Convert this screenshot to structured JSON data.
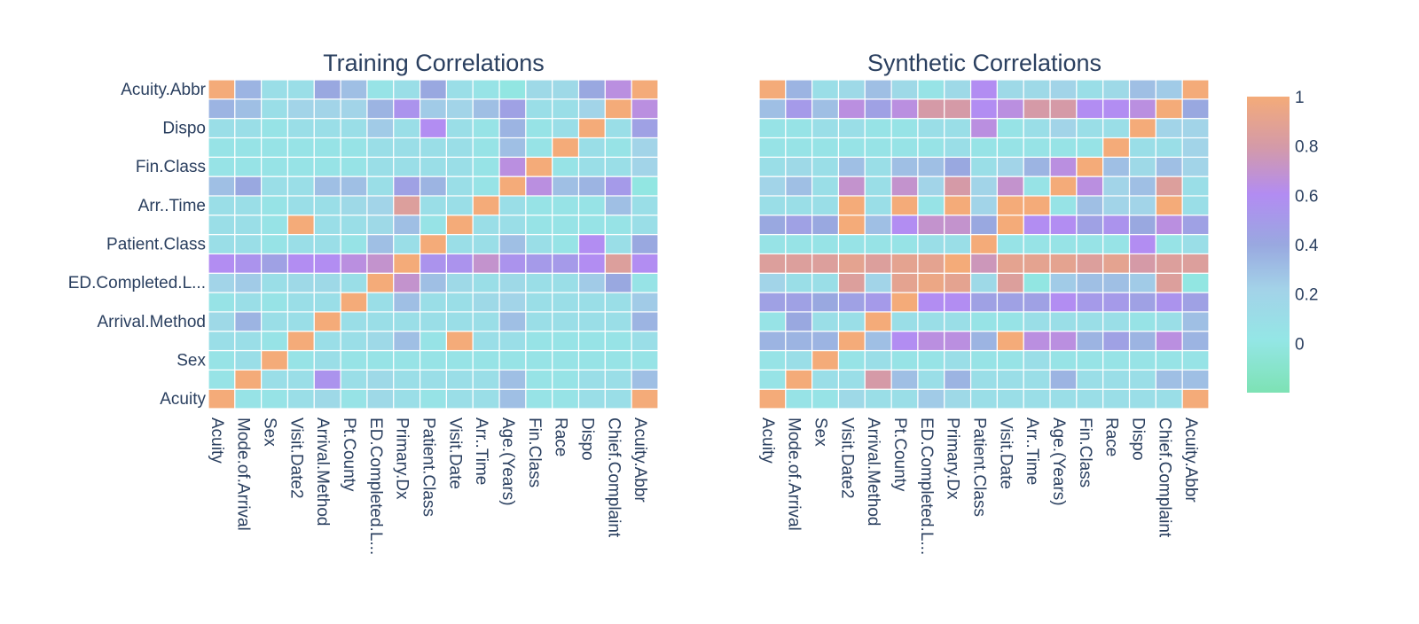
{
  "chart_data": {
    "type": "heatmap",
    "variables": [
      "Acuity",
      "Mode.of.Arrival",
      "Sex",
      "Visit.Date2",
      "Arrival.Method",
      "Pt.County",
      "ED.Completed.L...",
      "Primary.Dx",
      "Patient.Class",
      "Visit.Date",
      "Arr..Time",
      "Age.(Years)",
      "Fin.Class",
      "Race",
      "Dispo",
      "Chief.Complaint",
      "Acuity.Abbr"
    ],
    "y_tick_labels_shown": [
      "Acuity",
      "Sex",
      "Arrival.Method",
      "ED.Completed.L...",
      "Patient.Class",
      "Arr..Time",
      "Fin.Class",
      "Dispo",
      "Acuity.Abbr"
    ],
    "colorbar": {
      "ticks": [
        0,
        0.2,
        0.4,
        0.6,
        0.8,
        1
      ],
      "range": [
        -0.2,
        1
      ],
      "colorscale": [
        [
          0,
          "#7de2b4"
        ],
        [
          0.18,
          "#94e6e6"
        ],
        [
          0.35,
          "#a3d2e8"
        ],
        [
          0.5,
          "#99a8e0"
        ],
        [
          0.67,
          "#b28cf2"
        ],
        [
          0.83,
          "#d49aa8"
        ],
        [
          1,
          "#f4ab79"
        ]
      ]
    },
    "panels": [
      {
        "title": "Training Correlations",
        "z": [
          [
            1.0,
            0.05,
            0.05,
            0.1,
            0.15,
            0.05,
            0.15,
            0.1,
            0.05,
            0.1,
            0.1,
            0.3,
            0.05,
            0.05,
            0.1,
            0.1,
            1.0
          ],
          [
            0.05,
            1.0,
            0.1,
            0.1,
            0.55,
            0.1,
            0.15,
            0.1,
            0.1,
            0.1,
            0.1,
            0.3,
            0.05,
            0.05,
            0.1,
            0.1,
            0.3
          ],
          [
            0.05,
            0.1,
            1.0,
            0.05,
            0.1,
            0.05,
            0.05,
            0.05,
            0.05,
            0.05,
            0.05,
            0.05,
            0.05,
            0.05,
            0.05,
            0.05,
            0.05
          ],
          [
            0.1,
            0.1,
            0.05,
            1.0,
            0.1,
            0.1,
            0.15,
            0.3,
            0.05,
            1.0,
            0.1,
            0.1,
            0.05,
            0.05,
            0.05,
            0.05,
            0.1
          ],
          [
            0.15,
            0.35,
            0.1,
            0.1,
            1.0,
            0.1,
            0.1,
            0.1,
            0.1,
            0.1,
            0.1,
            0.3,
            0.1,
            0.1,
            0.1,
            0.1,
            0.35
          ],
          [
            0.05,
            0.1,
            0.05,
            0.1,
            0.1,
            1.0,
            0.1,
            0.3,
            0.1,
            0.1,
            0.15,
            0.2,
            0.1,
            0.1,
            0.1,
            0.1,
            0.25
          ],
          [
            0.2,
            0.25,
            0.1,
            0.15,
            0.15,
            0.1,
            1.0,
            0.7,
            0.3,
            0.15,
            0.1,
            0.15,
            0.1,
            0.1,
            0.25,
            0.4,
            0.05
          ],
          [
            0.6,
            0.55,
            0.45,
            0.6,
            0.6,
            0.65,
            0.7,
            1.0,
            0.55,
            0.55,
            0.7,
            0.55,
            0.5,
            0.5,
            0.6,
            0.85,
            0.6
          ],
          [
            0.1,
            0.1,
            0.05,
            0.1,
            0.1,
            0.05,
            0.3,
            0.1,
            1.0,
            0.1,
            0.1,
            0.3,
            0.1,
            0.05,
            0.6,
            0.1,
            0.4
          ],
          [
            0.1,
            0.1,
            0.05,
            1.0,
            0.1,
            0.1,
            0.15,
            0.3,
            0.05,
            1.0,
            0.1,
            0.1,
            0.05,
            0.05,
            0.05,
            0.05,
            0.1
          ],
          [
            0.1,
            0.1,
            0.05,
            0.1,
            0.1,
            0.15,
            0.2,
            0.85,
            0.1,
            0.1,
            1.0,
            0.1,
            0.05,
            0.05,
            0.05,
            0.3,
            0.1
          ],
          [
            0.3,
            0.4,
            0.1,
            0.1,
            0.3,
            0.3,
            0.1,
            0.45,
            0.35,
            0.1,
            0.05,
            1.0,
            0.65,
            0.3,
            0.35,
            0.5,
            0.0
          ],
          [
            0.05,
            0.05,
            0.05,
            0.05,
            0.05,
            0.05,
            0.1,
            0.1,
            0.1,
            0.1,
            0.05,
            0.65,
            1.0,
            0.05,
            0.1,
            0.1,
            0.2
          ],
          [
            0.05,
            0.05,
            0.05,
            0.05,
            0.05,
            0.05,
            0.1,
            0.1,
            0.1,
            0.1,
            0.05,
            0.3,
            0.05,
            1.0,
            0.1,
            0.05,
            0.2
          ],
          [
            0.1,
            0.1,
            0.05,
            0.1,
            0.1,
            0.1,
            0.25,
            0.1,
            0.6,
            0.1,
            0.05,
            0.35,
            0.05,
            0.1,
            1.0,
            0.1,
            0.45
          ],
          [
            0.35,
            0.3,
            0.1,
            0.2,
            0.2,
            0.2,
            0.35,
            0.55,
            0.25,
            0.2,
            0.3,
            0.45,
            0.1,
            0.1,
            0.2,
            1.0,
            0.65
          ],
          [
            1.0,
            0.35,
            0.1,
            0.1,
            0.4,
            0.3,
            0.05,
            0.1,
            0.4,
            0.1,
            0.05,
            0.0,
            0.15,
            0.15,
            0.4,
            0.65,
            1.0
          ]
        ]
      },
      {
        "title": "Synthetic Correlations",
        "z": [
          [
            1.0,
            0.05,
            0.05,
            0.15,
            0.1,
            0.1,
            0.25,
            0.15,
            0.1,
            0.1,
            0.1,
            0.1,
            0.1,
            0.1,
            0.1,
            0.1,
            1.0
          ],
          [
            0.05,
            1.0,
            0.1,
            0.1,
            0.8,
            0.3,
            0.1,
            0.35,
            0.1,
            0.1,
            0.1,
            0.35,
            0.1,
            0.1,
            0.1,
            0.3,
            0.3
          ],
          [
            0.05,
            0.1,
            1.0,
            0.05,
            0.1,
            0.05,
            0.05,
            0.1,
            0.05,
            0.05,
            0.1,
            0.05,
            0.05,
            0.05,
            0.05,
            0.05,
            0.05
          ],
          [
            0.35,
            0.35,
            0.35,
            1.0,
            0.3,
            0.6,
            0.65,
            0.65,
            0.35,
            1.0,
            0.65,
            0.65,
            0.35,
            0.45,
            0.35,
            0.65,
            0.35
          ],
          [
            0.05,
            0.4,
            0.1,
            0.1,
            1.0,
            0.1,
            0.1,
            0.1,
            0.05,
            0.05,
            0.1,
            0.1,
            0.1,
            0.1,
            0.05,
            0.1,
            0.3
          ],
          [
            0.45,
            0.45,
            0.4,
            0.45,
            0.5,
            1.0,
            0.6,
            0.6,
            0.45,
            0.45,
            0.45,
            0.6,
            0.5,
            0.5,
            0.45,
            0.55,
            0.45
          ],
          [
            0.2,
            0.1,
            0.1,
            0.85,
            0.2,
            0.9,
            0.95,
            0.9,
            0.15,
            0.85,
            0.0,
            0.25,
            0.3,
            0.3,
            0.25,
            0.85,
            0.0
          ],
          [
            0.85,
            0.85,
            0.85,
            0.9,
            0.85,
            0.9,
            0.9,
            1.0,
            0.75,
            0.9,
            0.9,
            0.9,
            0.85,
            0.9,
            0.8,
            0.85,
            0.85
          ],
          [
            0.05,
            0.05,
            0.05,
            0.05,
            0.05,
            0.05,
            0.1,
            0.1,
            1.0,
            0.05,
            0.05,
            0.05,
            0.05,
            0.05,
            0.6,
            0.05,
            0.1
          ],
          [
            0.4,
            0.45,
            0.4,
            1.0,
            0.3,
            0.6,
            0.7,
            0.7,
            0.4,
            1.0,
            0.6,
            0.6,
            0.45,
            0.55,
            0.4,
            0.65,
            0.45
          ],
          [
            0.1,
            0.1,
            0.1,
            1.0,
            0.1,
            1.0,
            0.05,
            1.0,
            0.2,
            1.0,
            1.0,
            0.05,
            0.3,
            0.2,
            0.2,
            1.0,
            0.1
          ],
          [
            0.2,
            0.3,
            0.1,
            0.7,
            0.1,
            0.7,
            0.2,
            0.8,
            0.2,
            0.7,
            0.05,
            1.0,
            0.65,
            0.2,
            0.3,
            0.85,
            0.1
          ],
          [
            0.1,
            0.15,
            0.1,
            0.3,
            0.1,
            0.3,
            0.3,
            0.4,
            0.1,
            0.2,
            0.35,
            0.65,
            1.0,
            0.3,
            0.15,
            0.3,
            0.2
          ],
          [
            0.05,
            0.05,
            0.05,
            0.05,
            0.05,
            0.05,
            0.05,
            0.1,
            0.05,
            0.05,
            0.05,
            0.05,
            0.05,
            1.0,
            0.1,
            0.1,
            0.2
          ],
          [
            0.05,
            0.05,
            0.1,
            0.1,
            0.05,
            0.05,
            0.1,
            0.1,
            0.65,
            0.05,
            0.1,
            0.2,
            0.1,
            0.1,
            1.0,
            0.2,
            0.2
          ],
          [
            0.3,
            0.5,
            0.3,
            0.65,
            0.45,
            0.65,
            0.8,
            0.8,
            0.6,
            0.65,
            0.8,
            0.8,
            0.6,
            0.6,
            0.65,
            1.0,
            0.4
          ],
          [
            1.0,
            0.35,
            0.1,
            0.15,
            0.3,
            0.15,
            0.05,
            0.15,
            0.6,
            0.15,
            0.15,
            0.2,
            0.1,
            0.15,
            0.3,
            0.25,
            1.0
          ]
        ]
      }
    ]
  }
}
